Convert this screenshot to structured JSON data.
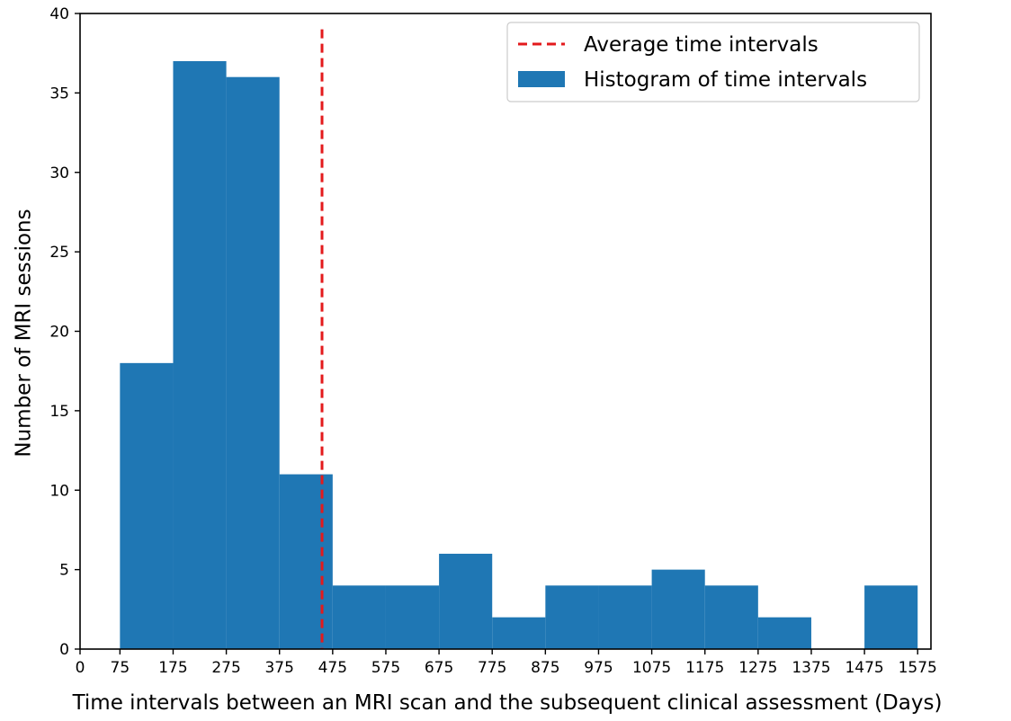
{
  "chart_data": {
    "type": "bar",
    "title": "",
    "xlabel": "Time intervals between an MRI scan and the subsequent clinical assessment (Days)",
    "ylabel": "Number of MRI sessions",
    "xlim": [
      0,
      1600
    ],
    "ylim": [
      0,
      40
    ],
    "x_ticks": [
      0,
      75,
      175,
      275,
      375,
      475,
      575,
      675,
      775,
      875,
      975,
      1075,
      1175,
      1275,
      1375,
      1475,
      1575
    ],
    "y_ticks": [
      0,
      5,
      10,
      15,
      20,
      25,
      30,
      35,
      40
    ],
    "grid": false,
    "legend_position": "top-right",
    "bins": [
      {
        "start": 75,
        "end": 175,
        "count": 18
      },
      {
        "start": 175,
        "end": 275,
        "count": 37
      },
      {
        "start": 275,
        "end": 375,
        "count": 36
      },
      {
        "start": 375,
        "end": 475,
        "count": 11
      },
      {
        "start": 475,
        "end": 575,
        "count": 4
      },
      {
        "start": 575,
        "end": 675,
        "count": 4
      },
      {
        "start": 675,
        "end": 775,
        "count": 6
      },
      {
        "start": 775,
        "end": 875,
        "count": 2
      },
      {
        "start": 875,
        "end": 975,
        "count": 4
      },
      {
        "start": 975,
        "end": 1075,
        "count": 4
      },
      {
        "start": 1075,
        "end": 1175,
        "count": 5
      },
      {
        "start": 1175,
        "end": 1275,
        "count": 4
      },
      {
        "start": 1275,
        "end": 1375,
        "count": 2
      },
      {
        "start": 1375,
        "end": 1475,
        "count": 0
      },
      {
        "start": 1475,
        "end": 1575,
        "count": 4
      }
    ],
    "average_line": {
      "x": 455,
      "color": "#e31a1c",
      "style": "dashed"
    },
    "bar_color": "#1f77b4",
    "legend": [
      {
        "label": "Average time intervals",
        "kind": "dashed-line",
        "color": "#e31a1c"
      },
      {
        "label": "Histogram of time intervals",
        "kind": "patch",
        "color": "#1f77b4"
      }
    ]
  }
}
